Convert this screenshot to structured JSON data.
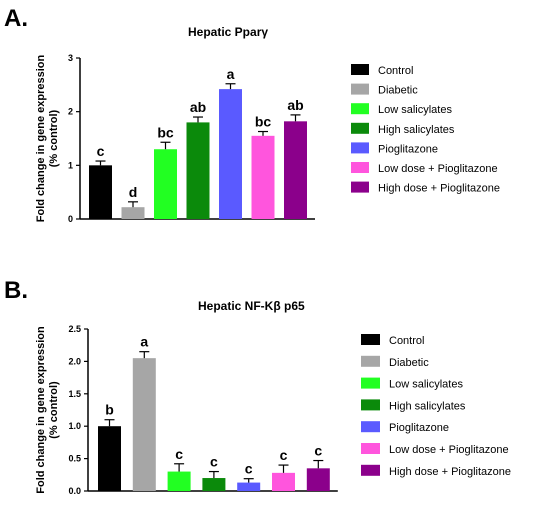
{
  "chart_data": [
    {
      "type": "bar",
      "panel": "A.",
      "title": "Hepatic Pparγ",
      "ylabel": [
        "Fold change in gene expression",
        "(% control)"
      ],
      "ylim": [
        0,
        3
      ],
      "yticks": [
        "0",
        "1",
        "2",
        "3"
      ],
      "categories": [
        "Control",
        "Diabetic",
        "Low salicylates",
        "High salicylates",
        "Pioglitazone",
        "Low dose + Pioglitazone",
        "High dose + Pioglitazone"
      ],
      "values": [
        1.0,
        0.22,
        1.3,
        1.8,
        2.42,
        1.55,
        1.82
      ],
      "errors": [
        0.08,
        0.1,
        0.13,
        0.1,
        0.1,
        0.08,
        0.12
      ],
      "labels": [
        "c",
        "d",
        "bc",
        "ab",
        "a",
        "bc",
        "ab"
      ],
      "colors": [
        "#000000",
        "#a6a6a6",
        "#22ff22",
        "#0b8a0b",
        "#5a5aff",
        "#ff55dd",
        "#8b008b"
      ]
    },
    {
      "type": "bar",
      "panel": "B.",
      "title": "Hepatic NF-Kβ p65",
      "ylabel": [
        "Fold change in gene expression",
        "(% control)"
      ],
      "ylim": [
        0,
        2.5
      ],
      "yticks": [
        "0.0",
        "0.5",
        "1.0",
        "1.5",
        "2.0",
        "2.5"
      ],
      "categories": [
        "Control",
        "Diabetic",
        "Low salicylates",
        "High salicylates",
        "Pioglitazone",
        "Low dose + Pioglitazone",
        "High dose + Pioglitazone"
      ],
      "values": [
        1.0,
        2.05,
        0.3,
        0.2,
        0.13,
        0.28,
        0.35
      ],
      "errors": [
        0.1,
        0.1,
        0.12,
        0.1,
        0.06,
        0.12,
        0.12
      ],
      "labels": [
        "b",
        "a",
        "c",
        "c",
        "c",
        "c",
        "c"
      ],
      "colors": [
        "#000000",
        "#a6a6a6",
        "#22ff22",
        "#0b8a0b",
        "#5a5aff",
        "#ff55dd",
        "#8b008b"
      ]
    }
  ]
}
